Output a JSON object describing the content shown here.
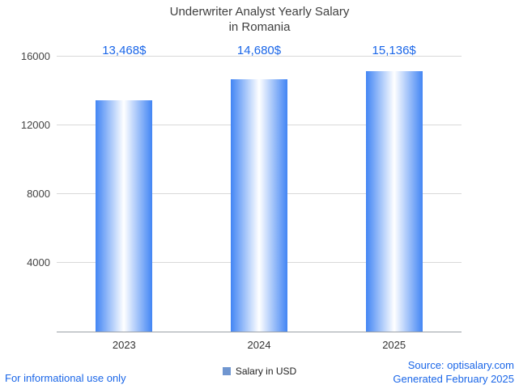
{
  "title": {
    "line1": "Underwriter Analyst Yearly Salary",
    "line2": "in Romania"
  },
  "legend": {
    "label": "Salary in USD",
    "swatch_color": "#7096d0"
  },
  "footer": {
    "left": "For informational use only",
    "source": "Source: optisalary.com",
    "generated": "Generated February 2025"
  },
  "colors": {
    "label_blue": "#1a66e8",
    "bar_edge": "#4285f4",
    "bar_center": "#ffffff",
    "grid": "#d9d9d9",
    "axis": "#9aa0a6",
    "title_gray": "#404040"
  },
  "chart_data": {
    "type": "bar",
    "title": "Underwriter Analyst Yearly Salary in Romania",
    "categories": [
      "2023",
      "2024",
      "2025"
    ],
    "values": [
      13468,
      14680,
      15136
    ],
    "value_labels": [
      "13,468$",
      "14,680$",
      "15,136$"
    ],
    "series": [
      {
        "name": "Salary in USD",
        "values": [
          13468,
          14680,
          15136
        ]
      }
    ],
    "xlabel": "",
    "ylabel": "",
    "ylim": [
      0,
      16000
    ],
    "yticks": [
      4000,
      8000,
      12000,
      16000
    ],
    "grid": true,
    "legend_position": "bottom"
  }
}
